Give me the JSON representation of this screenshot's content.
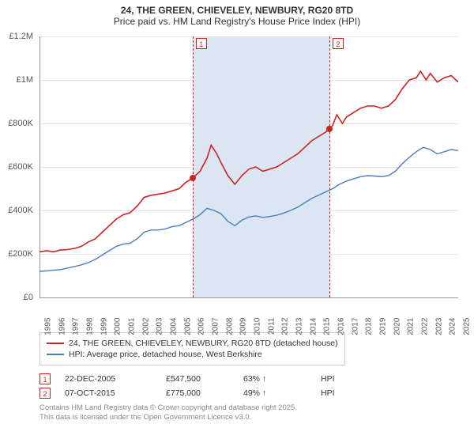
{
  "title_line1": "24, THE GREEN, CHIEVELEY, NEWBURY, RG20 8TD",
  "title_line2": "Price paid vs. HM Land Registry's House Price Index (HPI)",
  "chart": {
    "type": "line",
    "ylim": [
      0,
      1200000
    ],
    "ytick_step": 200000,
    "ytick_labels": [
      "£0",
      "£200K",
      "£400K",
      "£600K",
      "£800K",
      "£1M",
      "£1.2M"
    ],
    "xlim": [
      1995,
      2025
    ],
    "xtick_step": 1,
    "xtick_labels": [
      "1995",
      "1996",
      "1997",
      "1998",
      "1999",
      "2000",
      "2001",
      "2002",
      "2003",
      "2004",
      "2005",
      "2006",
      "2007",
      "2008",
      "2009",
      "2010",
      "2011",
      "2012",
      "2013",
      "2014",
      "2015",
      "2016",
      "2017",
      "2018",
      "2019",
      "2020",
      "2021",
      "2022",
      "2023",
      "2024",
      "2025"
    ],
    "background_color": "#ffffff",
    "grid_color": "#e5e5e5",
    "axis_color": "#999999",
    "shade_color": "#dce6f2",
    "shade_from_year": 2005.97,
    "shade_to_year": 2015.77,
    "series": [
      {
        "name": "price_paid",
        "color": "#cc2222",
        "line_width": 1.6,
        "legend": "24, THE GREEN, CHIEVELEY, NEWBURY, RG20 8TD (detached house)",
        "points": [
          [
            1995,
            210000
          ],
          [
            1995.5,
            215000
          ],
          [
            1996,
            210000
          ],
          [
            1996.5,
            218000
          ],
          [
            1997,
            220000
          ],
          [
            1997.5,
            225000
          ],
          [
            1998,
            235000
          ],
          [
            1998.5,
            255000
          ],
          [
            1999,
            270000
          ],
          [
            1999.5,
            300000
          ],
          [
            2000,
            330000
          ],
          [
            2000.5,
            360000
          ],
          [
            2001,
            380000
          ],
          [
            2001.5,
            390000
          ],
          [
            2002,
            420000
          ],
          [
            2002.5,
            460000
          ],
          [
            2003,
            470000
          ],
          [
            2003.5,
            475000
          ],
          [
            2004,
            480000
          ],
          [
            2004.5,
            490000
          ],
          [
            2005,
            500000
          ],
          [
            2005.5,
            530000
          ],
          [
            2005.97,
            547500
          ],
          [
            2006.5,
            580000
          ],
          [
            2007,
            640000
          ],
          [
            2007.3,
            700000
          ],
          [
            2007.7,
            660000
          ],
          [
            2008,
            620000
          ],
          [
            2008.5,
            560000
          ],
          [
            2009,
            520000
          ],
          [
            2009.5,
            560000
          ],
          [
            2010,
            590000
          ],
          [
            2010.5,
            600000
          ],
          [
            2011,
            580000
          ],
          [
            2011.5,
            590000
          ],
          [
            2012,
            600000
          ],
          [
            2012.5,
            620000
          ],
          [
            2013,
            640000
          ],
          [
            2013.5,
            660000
          ],
          [
            2014,
            690000
          ],
          [
            2014.5,
            720000
          ],
          [
            2015,
            740000
          ],
          [
            2015.5,
            760000
          ],
          [
            2015.77,
            775000
          ],
          [
            2016,
            790000
          ],
          [
            2016.3,
            840000
          ],
          [
            2016.7,
            800000
          ],
          [
            2017,
            830000
          ],
          [
            2017.5,
            850000
          ],
          [
            2018,
            870000
          ],
          [
            2018.5,
            880000
          ],
          [
            2019,
            880000
          ],
          [
            2019.5,
            870000
          ],
          [
            2020,
            880000
          ],
          [
            2020.5,
            910000
          ],
          [
            2021,
            960000
          ],
          [
            2021.5,
            1000000
          ],
          [
            2022,
            1010000
          ],
          [
            2022.3,
            1040000
          ],
          [
            2022.7,
            1000000
          ],
          [
            2023,
            1030000
          ],
          [
            2023.5,
            990000
          ],
          [
            2024,
            1010000
          ],
          [
            2024.5,
            1020000
          ],
          [
            2025,
            990000
          ]
        ]
      },
      {
        "name": "hpi",
        "color": "#4a7ebb",
        "line_width": 1.4,
        "legend": "HPI: Average price, detached house, West Berkshire",
        "points": [
          [
            1995,
            120000
          ],
          [
            1995.5,
            122000
          ],
          [
            1996,
            125000
          ],
          [
            1996.5,
            128000
          ],
          [
            1997,
            135000
          ],
          [
            1997.5,
            142000
          ],
          [
            1998,
            150000
          ],
          [
            1998.5,
            160000
          ],
          [
            1999,
            175000
          ],
          [
            1999.5,
            195000
          ],
          [
            2000,
            215000
          ],
          [
            2000.5,
            235000
          ],
          [
            2001,
            245000
          ],
          [
            2001.5,
            250000
          ],
          [
            2002,
            270000
          ],
          [
            2002.5,
            300000
          ],
          [
            2003,
            310000
          ],
          [
            2003.5,
            310000
          ],
          [
            2004,
            315000
          ],
          [
            2004.5,
            325000
          ],
          [
            2005,
            330000
          ],
          [
            2005.5,
            345000
          ],
          [
            2006,
            360000
          ],
          [
            2006.5,
            380000
          ],
          [
            2007,
            410000
          ],
          [
            2007.5,
            400000
          ],
          [
            2008,
            385000
          ],
          [
            2008.5,
            350000
          ],
          [
            2009,
            330000
          ],
          [
            2009.5,
            355000
          ],
          [
            2010,
            370000
          ],
          [
            2010.5,
            375000
          ],
          [
            2011,
            368000
          ],
          [
            2011.5,
            372000
          ],
          [
            2012,
            378000
          ],
          [
            2012.5,
            388000
          ],
          [
            2013,
            400000
          ],
          [
            2013.5,
            415000
          ],
          [
            2014,
            435000
          ],
          [
            2014.5,
            455000
          ],
          [
            2015,
            470000
          ],
          [
            2015.5,
            485000
          ],
          [
            2016,
            500000
          ],
          [
            2016.5,
            520000
          ],
          [
            2017,
            535000
          ],
          [
            2017.5,
            545000
          ],
          [
            2018,
            555000
          ],
          [
            2018.5,
            560000
          ],
          [
            2019,
            558000
          ],
          [
            2019.5,
            555000
          ],
          [
            2020,
            560000
          ],
          [
            2020.5,
            580000
          ],
          [
            2021,
            615000
          ],
          [
            2021.5,
            645000
          ],
          [
            2022,
            670000
          ],
          [
            2022.5,
            690000
          ],
          [
            2023,
            680000
          ],
          [
            2023.5,
            660000
          ],
          [
            2024,
            670000
          ],
          [
            2024.5,
            680000
          ],
          [
            2025,
            675000
          ]
        ]
      }
    ],
    "markers": [
      {
        "label": "1",
        "year": 2005.97,
        "value": 547500,
        "color": "#cc2222"
      },
      {
        "label": "2",
        "year": 2015.77,
        "value": 775000,
        "color": "#cc2222"
      }
    ]
  },
  "legend_border_color": "#cccccc",
  "transactions": [
    {
      "num": "1",
      "date": "22-DEC-2005",
      "price": "£547,500",
      "delta": "63%",
      "suffix": "HPI",
      "color": "#cc2222"
    },
    {
      "num": "2",
      "date": "07-OCT-2015",
      "price": "£775,000",
      "delta": "49%",
      "suffix": "HPI",
      "color": "#cc2222"
    }
  ],
  "footer_line1": "Contains HM Land Registry data © Crown copyright and database right 2025.",
  "footer_line2": "This data is licensed under the Open Government Licence v3.0."
}
